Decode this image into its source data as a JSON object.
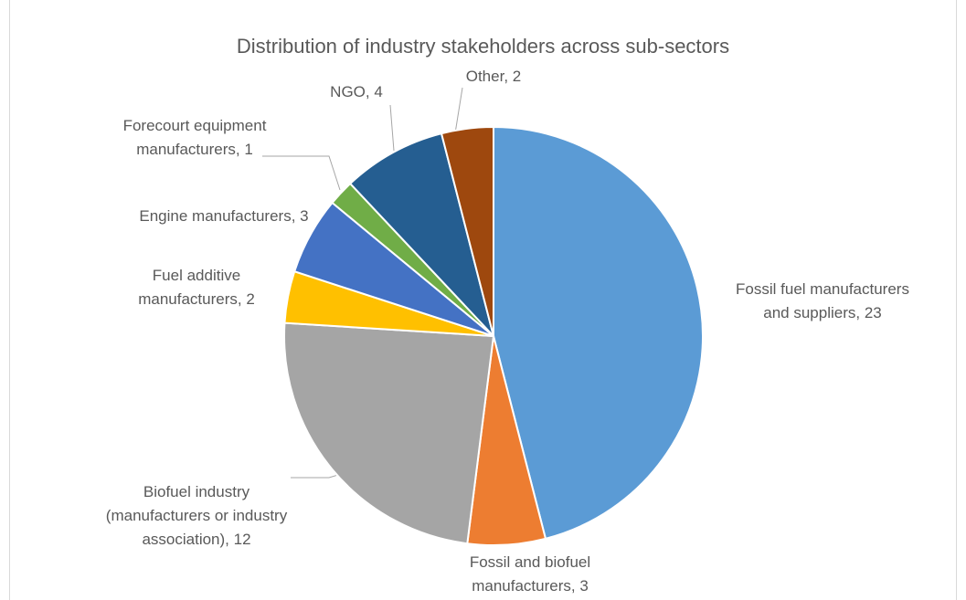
{
  "chart_data": {
    "type": "pie",
    "title": "Distribution of industry stakeholders across sub-sectors",
    "categories": [
      "Fossil fuel manufacturers and suppliers",
      "Fossil and biofuel manufacturers",
      "Biofuel industry (manufacturers or industry association)",
      "Fuel additive manufacturers",
      "Engine manufacturers",
      "Forecourt equipment manufacturers",
      "NGO",
      "Other"
    ],
    "values": [
      23,
      3,
      12,
      2,
      3,
      1,
      4,
      2
    ],
    "colors": [
      "#5b9bd5",
      "#ed7d31",
      "#a5a5a5",
      "#ffc000",
      "#4472c4",
      "#70ad47",
      "#255e91",
      "#9e480e"
    ]
  }
}
